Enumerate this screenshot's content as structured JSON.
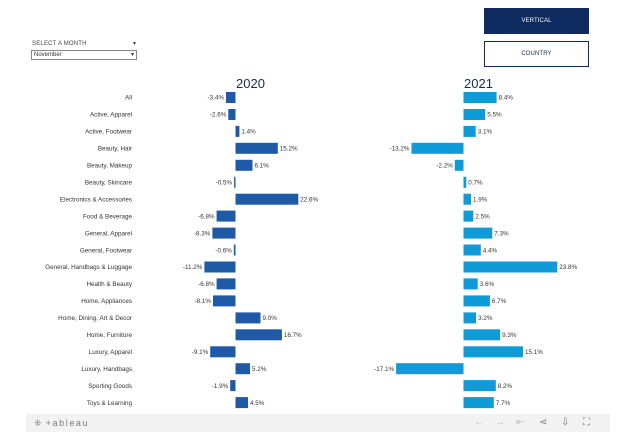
{
  "filter": {
    "label": "SELECT A MONTH",
    "selected": "November"
  },
  "buttons": {
    "vertical": "VERTICAL",
    "country": "COUNTRY"
  },
  "colors": {
    "bar_2020": "#1f5aa6",
    "bar_2021": "#0f9ad8",
    "button_active": "#0f2a5f"
  },
  "toolbar": {
    "logo": "+ableau"
  },
  "chart_data": {
    "type": "bar",
    "orientation": "horizontal",
    "categories": [
      "All",
      "Active, Apparel",
      "Active, Footwear",
      "Beauty, Hair",
      "Beauty, Makeup",
      "Beauty, Skincare",
      "Electronics & Accessories",
      "Food & Beverage",
      "General, Apparel",
      "General, Footwear",
      "General, Handbags & Luggage",
      "Health & Beauty",
      "Home, Appliances",
      "Home, Dining, Art & Decor",
      "Home, Furniture",
      "Luxury, Apparel",
      "Luxury, Handbags",
      "Sporting Goods",
      "Toys & Learning"
    ],
    "series": [
      {
        "name": "2020",
        "values": [
          -3.4,
          -2.6,
          1.4,
          15.2,
          6.1,
          -0.5,
          22.6,
          -6.8,
          -8.3,
          -0.6,
          -11.2,
          -6.8,
          -8.1,
          9.0,
          16.7,
          -9.1,
          5.2,
          -1.9,
          4.5
        ],
        "labels": [
          "-3.4%",
          "-2.6%",
          "1.4%",
          "15.2%",
          "6.1%",
          "-0.5%",
          "22.6%",
          "-6.8%",
          "-8.3%",
          "-0.6%",
          "-11.2%",
          "-6.8%",
          "-8.1%",
          "9.0%",
          "16.7%",
          "-9.1%",
          "5.2%",
          "-1.9%",
          "4.5%"
        ]
      },
      {
        "name": "2021",
        "values": [
          8.4,
          5.5,
          3.1,
          -13.2,
          -2.2,
          0.7,
          1.9,
          2.5,
          7.3,
          4.4,
          23.8,
          3.6,
          6.7,
          3.2,
          9.3,
          15.1,
          -17.1,
          8.2,
          7.7
        ],
        "labels": [
          "8.4%",
          "5.5%",
          "3.1%",
          "-13.2%",
          "-2.2%",
          "0.7%",
          "1.9%",
          "2.5%",
          "7.3%",
          "4.4%",
          "23.8%",
          "3.6%",
          "6.7%",
          "3.2%",
          "9.3%",
          "15.1%",
          "-17.1%",
          "8.2%",
          "7.7%"
        ]
      }
    ],
    "xlabel": "",
    "ylabel": ""
  }
}
